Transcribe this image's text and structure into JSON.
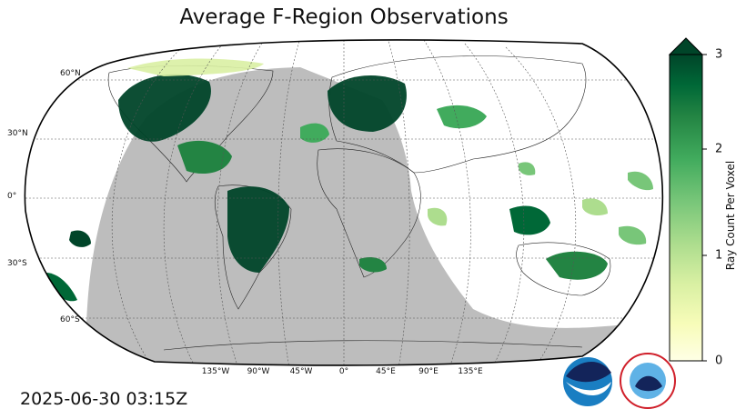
{
  "title": "Average F-Region Observations",
  "timestamp": "2025-06-30 03:15Z",
  "lat_labels": [
    "60°N",
    "30°N",
    "0°",
    "30°S",
    "60°S"
  ],
  "lon_labels": [
    "135°W",
    "90°W",
    "45°W",
    "0°",
    "45°E",
    "90°E",
    "135°E"
  ],
  "colorbar": {
    "label": "Ray Count Per Voxel",
    "ticks": [
      "0",
      "1",
      "2",
      "3"
    ],
    "min": 0,
    "max": 3,
    "extend": "max",
    "colors": [
      "#ffffe5",
      "#f7fcb9",
      "#d9f0a3",
      "#addd8e",
      "#78c679",
      "#41ab5d",
      "#238443",
      "#006837",
      "#004529"
    ]
  },
  "projection": "Robinson",
  "night_shade_color": "#bdbdbd",
  "logos": [
    "NOAA",
    "NATIONAL WEATHER SERVICE"
  ]
}
